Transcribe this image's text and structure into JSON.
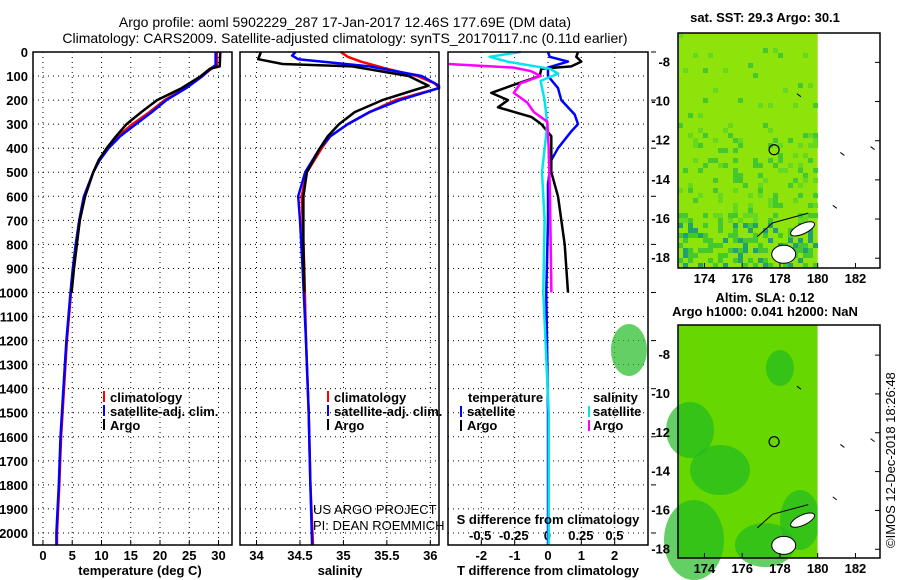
{
  "title_line1": "Argo profile: aoml 5902229_287 17-Jan-2017 12.46S 177.69E (DM data)",
  "title_line2": "Climatology: CARS2009. Satellite-adjusted climatology: synTS_20170117.nc (0.11d earlier)",
  "credit": {
    "line1": "US ARGO PROJECT",
    "line2": "PI: DEAN ROEMMICH"
  },
  "copyright": "©IMOS 12-Dec-2018 18:26:48",
  "colors": {
    "climatology": "#ff0000",
    "satellite": "#0000ff",
    "argo": "#000000",
    "sal_satellite": "#00e5ee",
    "sal_argo": "#ff00ff"
  },
  "chart_data": [
    {
      "type": "line",
      "name": "temperature-profile",
      "xlabel": "temperature (deg C)",
      "ylabel": "",
      "xlim": [
        -1.7,
        32.3
      ],
      "ylim": [
        2050,
        0
      ],
      "xticks": [
        0,
        5,
        10,
        15,
        20,
        25,
        30
      ],
      "yticks": [
        0,
        100,
        200,
        300,
        400,
        500,
        600,
        700,
        800,
        900,
        1000,
        1100,
        1200,
        1300,
        1400,
        1500,
        1600,
        1700,
        1800,
        1900,
        2000
      ],
      "grid": true,
      "legend": [
        "climatology",
        "satellite-adj. clim.",
        "Argo"
      ],
      "legend_placement": "bottom-center",
      "series": [
        {
          "name": "climatology",
          "color": "#ff0000",
          "points": [
            [
              0,
              29.7
            ],
            [
              55,
              29.7
            ],
            [
              70,
              28.8
            ],
            [
              100,
              27.2
            ],
            [
              150,
              24.3
            ],
            [
              200,
              20.8
            ],
            [
              250,
              18.2
            ],
            [
              300,
              15.3
            ],
            [
              350,
              12.8
            ],
            [
              400,
              11
            ],
            [
              450,
              9.6
            ],
            [
              500,
              8.6
            ],
            [
              600,
              7.1
            ],
            [
              700,
              6.3
            ],
            [
              800,
              5.7
            ],
            [
              900,
              5.2
            ],
            [
              1000,
              4.8
            ],
            [
              1200,
              4.1
            ],
            [
              1400,
              3.6
            ],
            [
              1600,
              3.1
            ],
            [
              1800,
              2.8
            ],
            [
              2000,
              2.4
            ],
            [
              2050,
              2.4
            ]
          ]
        },
        {
          "name": "satellite-adj. clim.",
          "color": "#0000ff",
          "points": [
            [
              0,
              29.5
            ],
            [
              55,
              29.5
            ],
            [
              70,
              28.6
            ],
            [
              100,
              27.3
            ],
            [
              150,
              24.5
            ],
            [
              200,
              21.1
            ],
            [
              250,
              18.6
            ],
            [
              300,
              15.9
            ],
            [
              350,
              13.2
            ],
            [
              400,
              11.2
            ],
            [
              450,
              9.7
            ],
            [
              500,
              8.6
            ],
            [
              600,
              7
            ],
            [
              700,
              6.2
            ],
            [
              800,
              5.6
            ],
            [
              900,
              5.1
            ],
            [
              1000,
              4.7
            ],
            [
              1200,
              4
            ],
            [
              1400,
              3.5
            ],
            [
              1600,
              3
            ],
            [
              1800,
              2.7
            ],
            [
              2000,
              2.3
            ],
            [
              2050,
              2.3
            ]
          ]
        },
        {
          "name": "Argo",
          "color": "#000000",
          "points": [
            [
              0,
              30.3
            ],
            [
              60,
              30.2
            ],
            [
              70,
              28.5
            ],
            [
              100,
              27
            ],
            [
              150,
              23.7
            ],
            [
              200,
              19.5
            ],
            [
              250,
              16.8
            ],
            [
              300,
              14.3
            ],
            [
              350,
              12.5
            ],
            [
              400,
              10.9
            ],
            [
              450,
              9.5
            ],
            [
              500,
              8.6
            ],
            [
              600,
              7.2
            ],
            [
              700,
              6.3
            ],
            [
              800,
              5.8
            ],
            [
              900,
              5.3
            ],
            [
              1000,
              4.9
            ]
          ]
        }
      ]
    },
    {
      "type": "line",
      "name": "salinity-profile",
      "xlabel": "salinity",
      "xlim": [
        33.81,
        36.1
      ],
      "ylim": [
        2050,
        0
      ],
      "xticks": [
        34,
        34.5,
        35,
        35.5,
        36
      ],
      "grid": true,
      "legend": [
        "climatology",
        "satellite-adj. clim.",
        "Argo"
      ],
      "legend_placement": "bottom-right",
      "series": [
        {
          "name": "climatology",
          "color": "#ff0000",
          "points": [
            [
              0,
              34.97
            ],
            [
              20,
              35.05
            ],
            [
              40,
              35.2
            ],
            [
              70,
              35.5
            ],
            [
              100,
              35.85
            ],
            [
              130,
              36.05
            ],
            [
              150,
              36.1
            ],
            [
              200,
              35.6
            ],
            [
              250,
              35.3
            ],
            [
              300,
              35.05
            ],
            [
              350,
              34.85
            ],
            [
              400,
              34.75
            ],
            [
              500,
              34.58
            ],
            [
              600,
              34.52
            ],
            [
              700,
              34.53
            ],
            [
              900,
              34.55
            ],
            [
              1200,
              34.57
            ],
            [
              1500,
              34.6
            ],
            [
              1800,
              34.62
            ],
            [
              2050,
              34.65
            ]
          ]
        },
        {
          "name": "satellite-adj. clim.",
          "color": "#0000ff",
          "points": [
            [
              0,
              34.45
            ],
            [
              15,
              34.41
            ],
            [
              30,
              34.48
            ],
            [
              60,
              35.3
            ],
            [
              100,
              35.9
            ],
            [
              140,
              36.1
            ],
            [
              150,
              36.1
            ],
            [
              200,
              35.65
            ],
            [
              250,
              35.3
            ],
            [
              300,
              35.05
            ],
            [
              350,
              34.85
            ],
            [
              400,
              34.73
            ],
            [
              500,
              34.56
            ],
            [
              600,
              34.48
            ],
            [
              700,
              34.5
            ],
            [
              900,
              34.53
            ],
            [
              1200,
              34.57
            ],
            [
              1500,
              34.6
            ],
            [
              1800,
              34.62
            ],
            [
              2050,
              34.64
            ]
          ]
        },
        {
          "name": "Argo",
          "color": "#000000",
          "points": [
            [
              0,
              34.05
            ],
            [
              30,
              34.02
            ],
            [
              50,
              34.3
            ],
            [
              60,
              35.1
            ],
            [
              100,
              35.75
            ],
            [
              140,
              35.98
            ],
            [
              160,
              35.8
            ],
            [
              200,
              35.45
            ],
            [
              250,
              35.13
            ],
            [
              300,
              34.95
            ],
            [
              350,
              34.82
            ],
            [
              400,
              34.73
            ],
            [
              500,
              34.58
            ],
            [
              600,
              34.54
            ],
            [
              700,
              34.54
            ],
            [
              800,
              34.54
            ],
            [
              1000,
              34.55
            ]
          ]
        }
      ]
    },
    {
      "type": "line",
      "name": "difference-from-climatology",
      "xlabel": "T difference from climatology",
      "x2label": "S difference from climatology",
      "xlim": [
        -3,
        3
      ],
      "x2lim": [
        -0.74,
        0.75
      ],
      "ylim": [
        2050,
        0
      ],
      "xticks": [
        -2,
        -1,
        0,
        1,
        2
      ],
      "x2ticks": [
        -0.5,
        -0.25,
        0,
        0.25,
        0.5
      ],
      "x2ticklabels": [
        "-0.5",
        "-0.25",
        "0",
        "0.25",
        "0.5"
      ],
      "grid": true,
      "legend_temperature_title": "temperature",
      "legend_salinity_title": "salinity",
      "legend_temperature": [
        "satellite",
        "Argo"
      ],
      "legend_salinity": [
        "satellite",
        "Argo"
      ],
      "legend_placement": "bottom",
      "series": [
        {
          "name": "T satellite",
          "axis": "T",
          "color": "#0000ff",
          "points": [
            [
              0,
              0
            ],
            [
              20,
              0.05
            ],
            [
              40,
              0.6
            ],
            [
              65,
              0
            ],
            [
              100,
              0
            ],
            [
              150,
              0.3
            ],
            [
              200,
              0.4
            ],
            [
              260,
              0.8
            ],
            [
              300,
              0.9
            ],
            [
              330,
              0.7
            ],
            [
              400,
              0.3
            ],
            [
              450,
              0.1
            ],
            [
              550,
              0
            ],
            [
              700,
              0
            ],
            [
              1000,
              -0.05
            ],
            [
              1500,
              0
            ],
            [
              2050,
              0
            ]
          ]
        },
        {
          "name": "T Argo",
          "axis": "T",
          "color": "#000000",
          "points": [
            [
              0,
              0.9
            ],
            [
              20,
              0.85
            ],
            [
              40,
              1.0
            ],
            [
              60,
              0.7
            ],
            [
              70,
              -0.2
            ],
            [
              100,
              -0.25
            ],
            [
              140,
              -1.1
            ],
            [
              170,
              -1.7
            ],
            [
              200,
              -1.2
            ],
            [
              230,
              -1.5
            ],
            [
              270,
              -0.5
            ],
            [
              300,
              -0.2
            ],
            [
              350,
              0.1
            ],
            [
              420,
              0.1
            ],
            [
              500,
              0.1
            ],
            [
              600,
              0.3
            ],
            [
              800,
              0.5
            ],
            [
              1000,
              0.6
            ]
          ]
        },
        {
          "name": "S satellite",
          "axis": "S",
          "color": "#00e5ee",
          "points": [
            [
              0,
              -0.2
            ],
            [
              20,
              -0.43
            ],
            [
              40,
              -0.3
            ],
            [
              70,
              0.02
            ],
            [
              90,
              0.08
            ],
            [
              120,
              -0.05
            ],
            [
              200,
              -0.02
            ],
            [
              300,
              0
            ],
            [
              500,
              -0.04
            ],
            [
              700,
              -0.02
            ],
            [
              1000,
              -0.03
            ],
            [
              1500,
              0.01
            ],
            [
              2050,
              0.01
            ]
          ]
        },
        {
          "name": "S Argo",
          "axis": "S",
          "color": "#ff00ff",
          "points": [
            [
              50,
              -0.74
            ],
            [
              65,
              -0.25
            ],
            [
              80,
              -0.12
            ],
            [
              100,
              -0.05
            ],
            [
              130,
              -0.2
            ],
            [
              170,
              -0.25
            ],
            [
              210,
              -0.15
            ],
            [
              250,
              -0.1
            ],
            [
              290,
              0
            ],
            [
              400,
              0.01
            ],
            [
              600,
              0.02
            ],
            [
              1000,
              0.03
            ]
          ]
        }
      ]
    },
    {
      "type": "heatmap",
      "name": "sst-map",
      "title": "sat. SST: 29.3 Argo: 30.1",
      "xlim": [
        172.6,
        183.3
      ],
      "ylim": [
        -18.5,
        -6.5
      ],
      "xticks": [
        174,
        176,
        178,
        180,
        182
      ],
      "yticks": [
        -8,
        -10,
        -12,
        -14,
        -16,
        -18
      ],
      "argo_position": [
        177.69,
        -12.46
      ]
    },
    {
      "type": "heatmap",
      "name": "sla-map",
      "title_line1": "Altim. SLA: 0.12",
      "title_line2": "Argo h1000: 0.041 h2000: NaN",
      "xlim": [
        172.6,
        183.3
      ],
      "ylim": [
        -18.45,
        -6.45
      ],
      "xticks": [
        174,
        176,
        178,
        180,
        182
      ],
      "yticks": [
        -8,
        -10,
        -12,
        -14,
        -16,
        -18
      ],
      "argo_position": [
        177.69,
        -12.46
      ]
    }
  ]
}
